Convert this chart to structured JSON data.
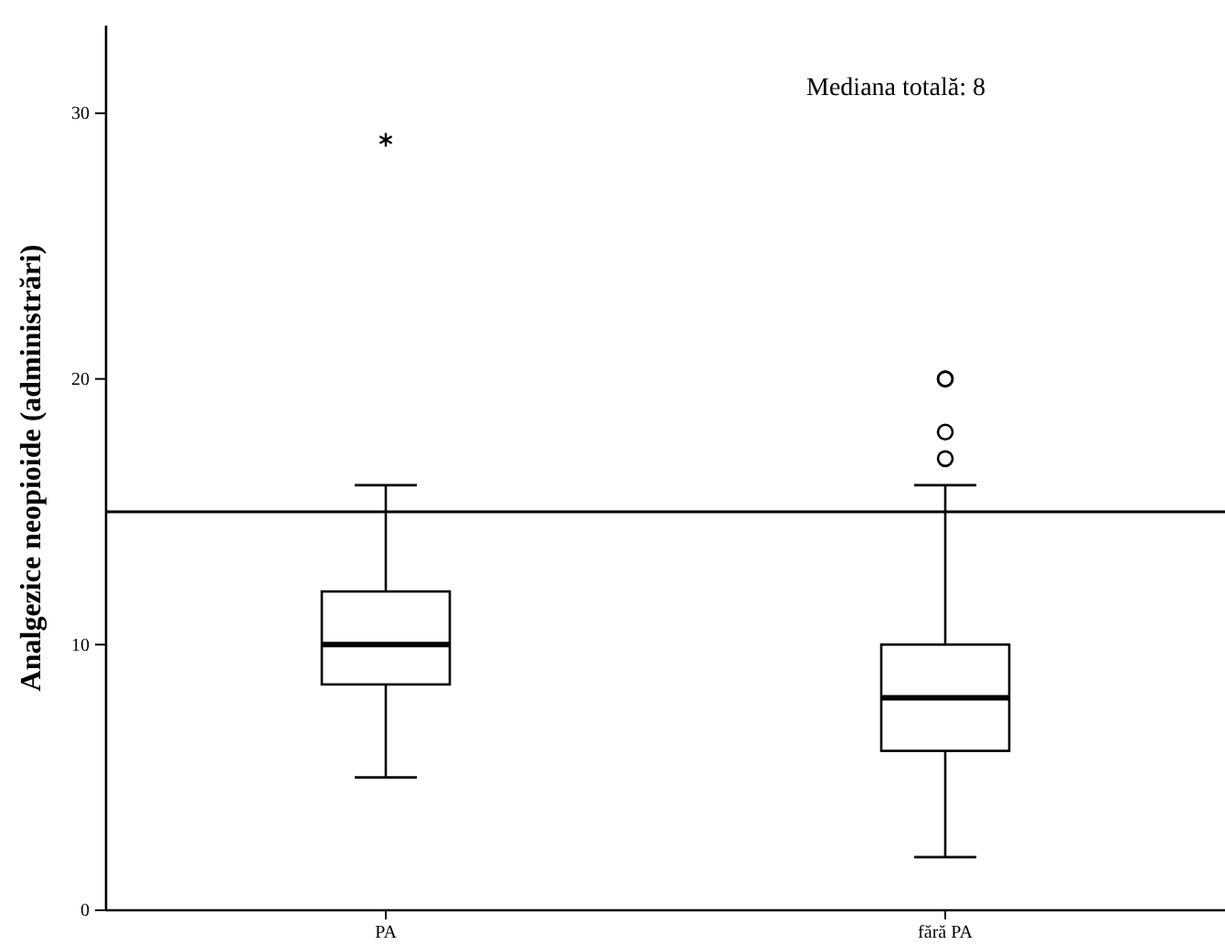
{
  "chart_data": {
    "type": "box",
    "ylabel": "Analgezice neopioide (administrări)",
    "categories": [
      "PA",
      "fără PA"
    ],
    "boxes": [
      {
        "low": 5,
        "q1": 8.5,
        "median": 10,
        "q3": 12,
        "high": 16,
        "outliers": [
          29
        ]
      },
      {
        "low": 2,
        "q1": 6,
        "median": 8,
        "q3": 10,
        "high": 16,
        "outliers": [
          20,
          20,
          18,
          17
        ]
      }
    ],
    "ylim": [
      0,
      33.3
    ],
    "yticks": [
      0,
      10,
      20,
      30
    ],
    "ref_lines": [
      {
        "axis": "y",
        "value": 15,
        "label": null
      }
    ],
    "annotations": [
      "Mediana totală: 8"
    ],
    "grid": false
  }
}
